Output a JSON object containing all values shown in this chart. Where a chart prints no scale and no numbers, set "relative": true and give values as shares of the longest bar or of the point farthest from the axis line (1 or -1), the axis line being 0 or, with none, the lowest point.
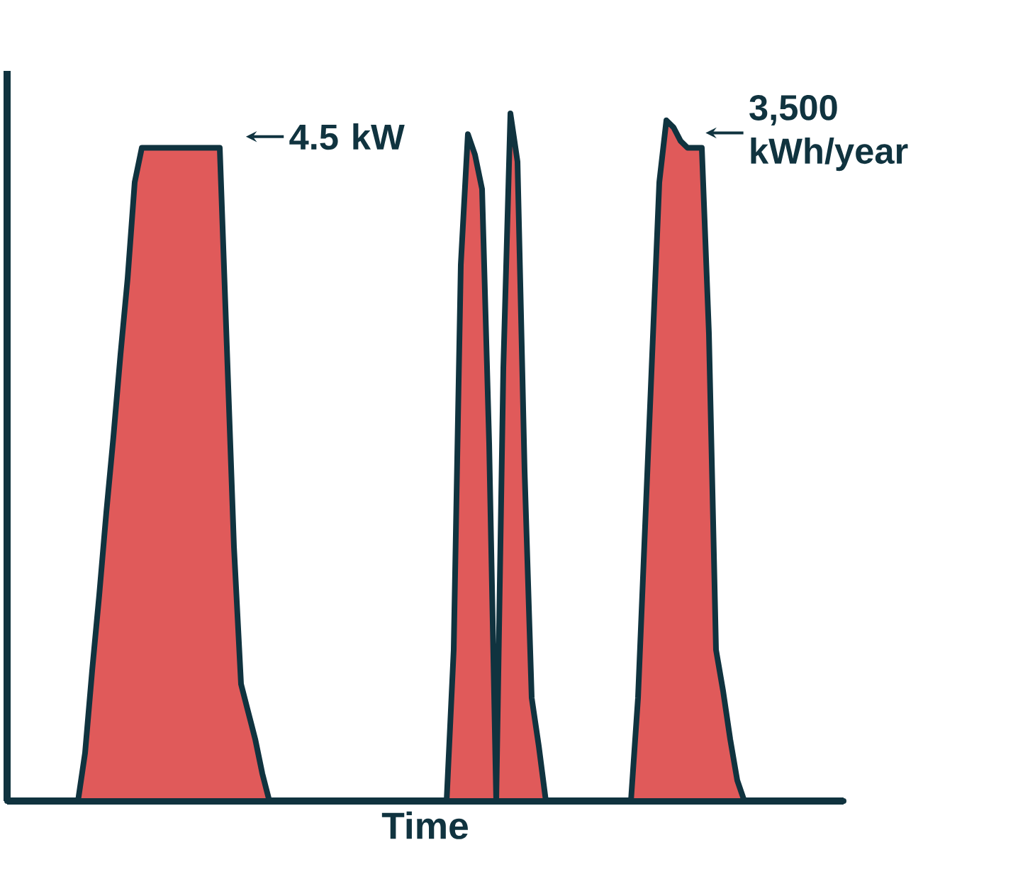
{
  "chart_data": {
    "type": "area",
    "relative": true,
    "xlabel": "Time",
    "color": "#e05a5a",
    "categories": [
      null,
      null,
      null,
      null,
      null,
      null,
      null,
      null,
      null,
      null,
      null,
      null,
      null,
      null,
      null,
      null,
      null,
      null,
      null,
      null,
      null,
      null,
      null,
      null,
      null,
      null,
      null,
      null,
      null,
      null,
      null,
      null,
      null,
      null,
      null,
      null,
      null,
      null,
      null,
      null,
      null,
      null,
      null,
      null,
      null,
      null,
      null,
      null,
      null,
      null,
      null,
      null,
      null,
      null,
      null,
      null,
      null,
      null,
      null,
      null,
      null,
      null,
      null,
      null,
      null,
      null,
      null,
      null,
      null,
      null,
      null,
      null,
      null,
      null,
      null,
      null,
      null,
      null,
      null,
      null,
      null,
      null,
      null,
      null,
      null,
      null,
      null,
      null,
      null,
      null,
      null,
      null,
      null,
      null,
      null,
      null,
      null,
      null,
      null,
      null,
      null,
      null,
      null,
      null,
      null,
      null,
      null,
      null,
      null,
      null,
      null,
      null,
      null,
      null,
      null,
      null,
      null,
      null,
      null
    ],
    "values": [
      0,
      0,
      0,
      0,
      0,
      0,
      0,
      0,
      0,
      0,
      0,
      0.07,
      0.19,
      0.3,
      0.42,
      0.53,
      0.65,
      0.76,
      0.9,
      0.95,
      0.95,
      0.95,
      0.95,
      0.95,
      0.95,
      0.95,
      0.95,
      0.95,
      0.95,
      0.95,
      0.95,
      0.66,
      0.37,
      0.17,
      0.13,
      0.09,
      0.04,
      0,
      0,
      0,
      0,
      0,
      0,
      0,
      0,
      0,
      0,
      0,
      0,
      0,
      0,
      0,
      0,
      0,
      0,
      0,
      0,
      0,
      0,
      0,
      0,
      0,
      0,
      0.22,
      0.78,
      0.97,
      0.94,
      0.89,
      0.52,
      0,
      0.63,
      1.0,
      0.93,
      0.48,
      0.15,
      0.08,
      0,
      0,
      0,
      0,
      0,
      0,
      0,
      0,
      0,
      0,
      0,
      0,
      0,
      0.15,
      0.4,
      0.65,
      0.9,
      0.99,
      0.98,
      0.96,
      0.95,
      0.95,
      0.95,
      0.68,
      0.22,
      0.16,
      0.09,
      0.03,
      0,
      0,
      0,
      0,
      0,
      0,
      0,
      0,
      0,
      0,
      0,
      0,
      0,
      0,
      0
    ],
    "annotations": [
      "4.5 kW",
      "3,500 kWh/year"
    ]
  }
}
